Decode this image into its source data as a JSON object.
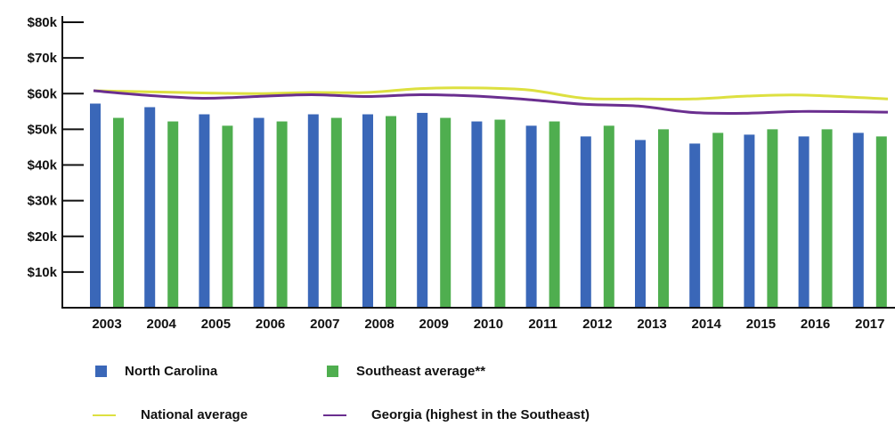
{
  "chart_data": {
    "type": "bar",
    "categories": [
      "2003",
      "2004",
      "2005",
      "2006",
      "2007",
      "2008",
      "2009",
      "2010",
      "2011",
      "2012",
      "2013",
      "2014",
      "2015",
      "2016",
      "2017"
    ],
    "series": [
      {
        "name": "North Carolina",
        "kind": "bar",
        "color": "#3a67b8",
        "values": [
          57.2,
          56.2,
          54.2,
          53.2,
          54.2,
          54.2,
          54.6,
          52.2,
          51.0,
          48.0,
          47.0,
          46.0,
          48.5,
          48.0,
          49.0
        ]
      },
      {
        "name": "Southeast average**",
        "kind": "bar",
        "color": "#4fae4f",
        "values": [
          53.2,
          52.2,
          51.0,
          52.2,
          53.2,
          53.7,
          53.2,
          52.7,
          52.2,
          51.0,
          50.0,
          49.0,
          50.0,
          50.0,
          48.0
        ]
      },
      {
        "name": "National average",
        "kind": "line",
        "color": "#dde040",
        "values": [
          60.8,
          60.5,
          60.2,
          60.0,
          60.3,
          60.3,
          61.4,
          61.6,
          61.0,
          58.7,
          58.5,
          58.5,
          59.3,
          59.6,
          58.5
        ]
      },
      {
        "name": "Georgia (highest in the Southeast)",
        "kind": "line",
        "color": "#6a2e8f",
        "values": [
          60.8,
          59.5,
          58.7,
          59.2,
          59.7,
          59.2,
          59.7,
          59.3,
          58.3,
          57.0,
          56.5,
          54.7,
          54.5,
          55.0,
          54.8
        ]
      }
    ],
    "yticks": [
      "$10k",
      "$20k",
      "$30k",
      "$40k",
      "$50k",
      "$60k",
      "$70k",
      "$80k"
    ],
    "ylim": [
      0,
      80
    ],
    "grid": false,
    "legend_placement": "bottom"
  }
}
